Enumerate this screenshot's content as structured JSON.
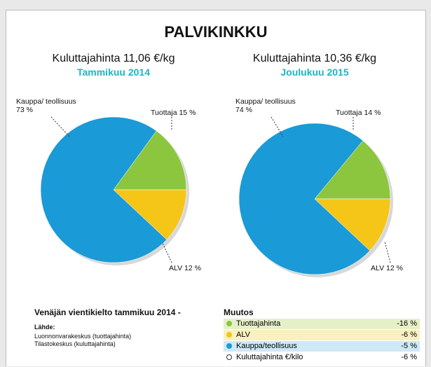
{
  "title": "PALVIKINKKU",
  "chart_data": [
    {
      "type": "pie",
      "title": "Kuluttajahinta 11,06 €/kg",
      "subtitle": "Tammikuu 2014",
      "values": [
        15,
        12,
        73
      ],
      "value_labels": [
        "Tuottaja 15 %",
        "ALV 12 %",
        "Kauppa/ teollisuus 73 %"
      ],
      "colors": [
        "#8cc63f",
        "#f5c518",
        "#1a9ad6"
      ]
    },
    {
      "type": "pie",
      "title": "Kuluttajahinta 10,36 €/kg",
      "subtitle": "Joulukuu 2015",
      "values": [
        14,
        12,
        74
      ],
      "value_labels": [
        "Tuottaja 14 %",
        "ALV 12 %",
        "Kauppa/ teollisuus 74 %"
      ],
      "colors": [
        "#8cc63f",
        "#f5c518",
        "#1a9ad6"
      ]
    }
  ],
  "note": {
    "heading": "Venäjän vientikielto tammikuu 2014 -",
    "source_title": "Lähde:",
    "sources": [
      "Luonnonvarakeskus (tuottajahinta)",
      "Tilastokeskus (kuluttajahinta)"
    ]
  },
  "changes": {
    "title": "Muutos",
    "rows": [
      [
        "Tuottajahinta",
        "-16 %"
      ],
      [
        "ALV",
        "-6 %"
      ],
      [
        "Kauppa/teollisuus",
        "-5 %"
      ],
      [
        "Kuluttajahinta €/kilo",
        "-6 %"
      ]
    ]
  }
}
